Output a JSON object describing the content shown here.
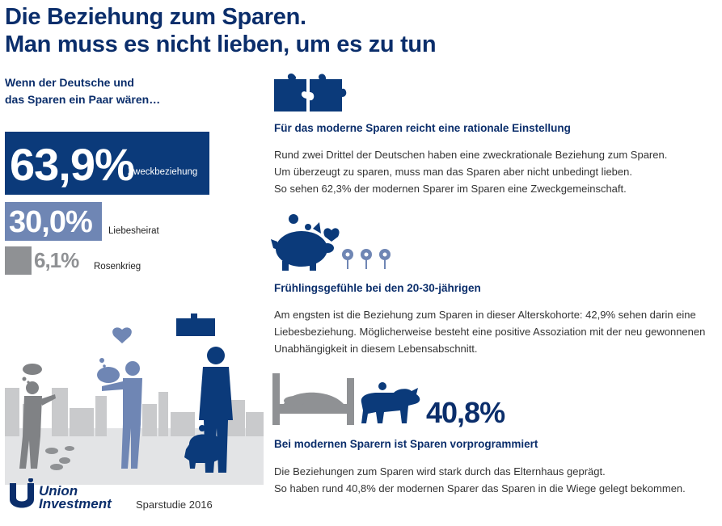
{
  "header": {
    "title_line1": "Die Beziehung zum Sparen.",
    "title_line2": "Man muss es nicht lieben, um es zu tun"
  },
  "intro": {
    "line1": "Wenn der Deutsche und",
    "line2": "das Sparen ein Paar wären…"
  },
  "bars": [
    {
      "value": "63,9%",
      "label": "Zweckbeziehung",
      "share": 0.639,
      "color": "#0b3a7a"
    },
    {
      "value": "30,0%",
      "label": "Liebesheirat",
      "share": 0.3,
      "color": "#6f86b4"
    },
    {
      "value": "6,1%",
      "label": "Rosenkrieg",
      "share": 0.061,
      "color": "#8f9194"
    }
  ],
  "sections": [
    {
      "icon": "puzzle-icon",
      "heading": "Für das moderne Sparen reicht eine rationale Einstellung",
      "lines": [
        "Rund zwei Drittel der Deutschen haben eine zweckrationale Beziehung zum Sparen.",
        "Um überzeugt zu sparen, muss man das Sparen aber nicht unbedingt lieben.",
        "So sehen 62,3% der modernen Sparer im Sparen eine Zweckgemeinschaft."
      ]
    },
    {
      "icon": "piggy-bank-flowers-icon",
      "heading": "Frühlingsgefühle bei den 20-30-jährigen",
      "lines": [
        "Am engsten ist die Beziehung zum Sparen in dieser Alterskohorte: 42,9% sehen darin eine",
        "Liebesbeziehung. Möglicherweise besteht eine positive Assoziation mit der neu gewonnenen",
        "Unabhängigkeit in diesem Lebensabschnitt."
      ]
    },
    {
      "icon": "bed-bull-icon",
      "stat": "40,8%",
      "heading": "Bei modernen Sparern ist Sparen vorprogrammiert",
      "lines": [
        "Die Beziehungen zum Sparen wird stark durch das Elternhaus geprägt.",
        "So haben rund 40,8% der modernen Sparer das Sparen in die Wiege gelegt bekommen."
      ]
    }
  ],
  "footer": {
    "brand_line1": "Union",
    "brand_line2": "Investment",
    "study": "Sparstudie 2016"
  },
  "colors": {
    "dark_blue": "#0b2e6b",
    "mid_blue": "#6f86b4",
    "grey": "#8f9194",
    "light_grey": "#c9cacc"
  }
}
